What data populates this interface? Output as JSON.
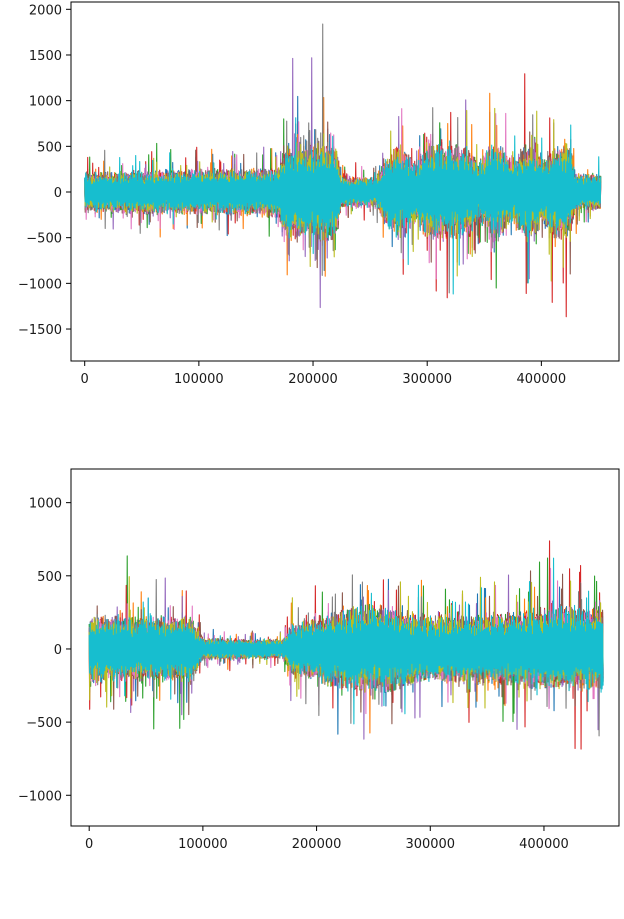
{
  "chart_data": [
    {
      "type": "line",
      "title": "",
      "xlabel": "",
      "ylabel": "",
      "xlim": [
        -12000,
        468000
      ],
      "ylim": [
        -1850,
        2080
      ],
      "x_ticks": [
        0,
        100000,
        200000,
        300000,
        400000
      ],
      "y_ticks": [
        -1500,
        -1000,
        -500,
        0,
        500,
        1000,
        1500,
        2000
      ],
      "x_tick_labels": [
        "0",
        "100000",
        "200000",
        "300000",
        "400000"
      ],
      "y_tick_labels": [
        "−1500",
        "−1000",
        "−500",
        "0",
        "500",
        "1000",
        "1500",
        "2000"
      ],
      "grid": false,
      "legend": "none",
      "n_points": 452000,
      "series": [
        {
          "color": "#1f77b4",
          "seed": 11,
          "hi_regions": [
            [
              270000,
              330000,
              1.05
            ],
            [
              350000,
              425000,
              1.0
            ]
          ]
        },
        {
          "color": "#ff7f0e",
          "seed": 23,
          "hi_regions": [
            [
              165000,
              185000,
              1.05
            ],
            [
              345000,
              360000,
              1.1
            ]
          ]
        },
        {
          "color": "#2ca02c",
          "seed": 37,
          "hi_regions": [
            [
              20000,
              70000,
              1.3
            ],
            [
              280000,
              300000,
              1.0
            ],
            [
              420000,
              440000,
              1.2
            ]
          ]
        },
        {
          "color": "#d62728",
          "seed": 41,
          "hi_regions": [
            [
              295000,
              320000,
              1.75
            ],
            [
              385000,
              430000,
              1.5
            ]
          ]
        },
        {
          "color": "#9467bd",
          "seed": 53,
          "hi_regions": [
            [
              175000,
              215000,
              1.8
            ],
            [
              110000,
              125000,
              1.0
            ]
          ]
        },
        {
          "color": "#8c564b",
          "seed": 61,
          "hi_regions": [
            [
              180000,
              215000,
              0.9
            ]
          ]
        },
        {
          "color": "#e377c2",
          "seed": 71,
          "hi_regions": [
            [
              355000,
              375000,
              1.55
            ],
            [
              420000,
              450000,
              1.0
            ]
          ]
        },
        {
          "color": "#7f7f7f",
          "seed": 83,
          "hi_regions": [
            [
              185000,
              220000,
              1.9
            ]
          ]
        },
        {
          "color": "#bcbd22",
          "seed": 97,
          "hi_regions": [
            [
              0,
              20000,
              0.95
            ]
          ]
        },
        {
          "color": "#17becf",
          "seed": 101,
          "hi_regions": [
            [
              225000,
              235000,
              0.7
            ],
            [
              270000,
              280000,
              1.4
            ]
          ]
        }
      ],
      "envelope": [
        [
          0,
          0.55
        ],
        [
          20000,
          0.55
        ],
        [
          60000,
          0.6
        ],
        [
          110000,
          0.6
        ],
        [
          150000,
          0.65
        ],
        [
          170000,
          0.7
        ],
        [
          175000,
          1.35
        ],
        [
          220000,
          1.35
        ],
        [
          225000,
          0.42
        ],
        [
          255000,
          0.4
        ],
        [
          262000,
          0.85
        ],
        [
          275000,
          1.3
        ],
        [
          290000,
          0.85
        ],
        [
          300000,
          1.35
        ],
        [
          335000,
          1.3
        ],
        [
          345000,
          0.85
        ],
        [
          355000,
          1.3
        ],
        [
          365000,
          1.3
        ],
        [
          375000,
          0.8
        ],
        [
          385000,
          1.3
        ],
        [
          395000,
          1.35
        ],
        [
          400000,
          0.85
        ],
        [
          410000,
          1.3
        ],
        [
          425000,
          1.3
        ],
        [
          430000,
          0.5
        ],
        [
          452000,
          0.5
        ]
      ],
      "amplitude": 700
    },
    {
      "type": "line",
      "title": "",
      "xlabel": "",
      "ylabel": "",
      "xlim": [
        -16000,
        466000
      ],
      "ylim": [
        -1210,
        1230
      ],
      "x_ticks": [
        0,
        100000,
        200000,
        300000,
        400000
      ],
      "y_ticks": [
        -1000,
        -500,
        0,
        500,
        1000
      ],
      "x_tick_labels": [
        "0",
        "100000",
        "200000",
        "300000",
        "400000"
      ],
      "y_tick_labels": [
        "−1000",
        "−500",
        "0",
        "500",
        "1000"
      ],
      "grid": false,
      "legend": "none",
      "n_points": 452000,
      "series": [
        {
          "color": "#1f77b4",
          "seed": 13,
          "hi_regions": [
            [
              225000,
              260000,
              1.2
            ],
            [
              440000,
              452000,
              0.9
            ]
          ]
        },
        {
          "color": "#ff7f0e",
          "seed": 29,
          "hi_regions": [
            [
              240000,
              255000,
              1.25
            ]
          ]
        },
        {
          "color": "#2ca02c",
          "seed": 31,
          "hi_regions": [
            [
              0,
              90000,
              1.45
            ],
            [
              370000,
              400000,
              1.2
            ]
          ]
        },
        {
          "color": "#d62728",
          "seed": 43,
          "hi_regions": [
            [
              380000,
              452000,
              1.3
            ]
          ]
        },
        {
          "color": "#9467bd",
          "seed": 59,
          "hi_regions": [
            [
              30000,
              90000,
              1.2
            ],
            [
              360000,
              380000,
              1.25
            ]
          ]
        },
        {
          "color": "#8c564b",
          "seed": 67,
          "hi_regions": [
            [
              200000,
              230000,
              1.0
            ]
          ]
        },
        {
          "color": "#e377c2",
          "seed": 73,
          "hi_regions": [
            [
              175000,
              452000,
              0.95
            ]
          ]
        },
        {
          "color": "#7f7f7f",
          "seed": 89,
          "hi_regions": [
            [
              175000,
              452000,
              0.85
            ]
          ]
        },
        {
          "color": "#bcbd22",
          "seed": 103,
          "hi_regions": [
            [
              250000,
              270000,
              0.9
            ]
          ]
        },
        {
          "color": "#17becf",
          "seed": 107,
          "hi_regions": [
            [
              340000,
              360000,
              1.1
            ]
          ]
        }
      ],
      "envelope": [
        [
          0,
          0.75
        ],
        [
          90000,
          0.75
        ],
        [
          100000,
          0.25
        ],
        [
          170000,
          0.22
        ],
        [
          178000,
          0.6
        ],
        [
          200000,
          0.75
        ],
        [
          230000,
          1.0
        ],
        [
          260000,
          1.0
        ],
        [
          300000,
          0.75
        ],
        [
          360000,
          0.8
        ],
        [
          400000,
          0.95
        ],
        [
          452000,
          0.95
        ]
      ],
      "amplitude": 520
    }
  ]
}
